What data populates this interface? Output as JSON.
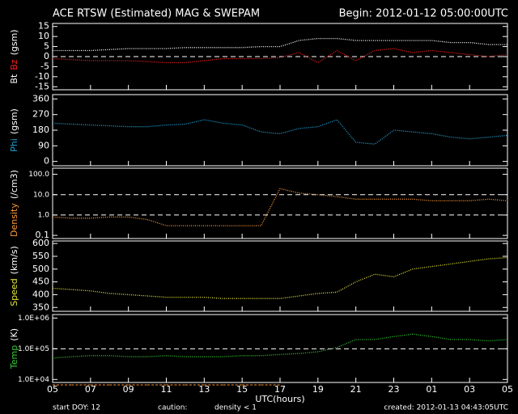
{
  "header": {
    "title": "ACE RTSW (Estimated) MAG & SWEPAM",
    "begin": "Begin: 2012-01-12 05:00:00UTC"
  },
  "footer": {
    "start": "start DOY:  12",
    "caution": "caution:",
    "density_note": "density < 1",
    "density_note_color": "#ff9933",
    "created": "created: 2012-01-13 04:43:05UTC",
    "xlabel": "UTC(hours)"
  },
  "chart_data": [
    {
      "type": "line",
      "ylabel_parts": [
        {
          "text": "Bt",
          "color": "#ffffff"
        },
        {
          "text": "Bz",
          "color": "#ff2020"
        },
        {
          "text": "(gsm)",
          "color": "#ffffff"
        }
      ],
      "x": [
        0,
        1,
        2,
        3,
        4,
        5,
        6,
        7,
        8,
        9,
        10,
        11,
        12,
        13,
        14,
        15,
        16,
        17,
        18,
        19,
        20,
        21,
        22,
        23,
        24
      ],
      "series": [
        {
          "name": "Bt",
          "color": "#ffffff",
          "values": [
            3,
            3,
            3,
            3.5,
            4,
            4,
            4,
            4.5,
            4.5,
            4.5,
            4.5,
            5,
            5,
            8,
            9,
            9,
            8,
            8,
            8,
            8,
            8,
            7,
            7,
            6,
            6
          ]
        },
        {
          "name": "Bz",
          "color": "#ff2020",
          "values": [
            -1,
            -1.5,
            -2,
            -2,
            -2,
            -2.5,
            -3,
            -3,
            -2,
            -1,
            -1,
            -1,
            -0.5,
            2,
            -3,
            3,
            -2,
            3,
            4,
            2,
            3,
            2,
            1,
            0,
            1
          ]
        }
      ],
      "ylim": [
        -16.5,
        16.5
      ],
      "yticks": [
        -15,
        -10,
        -5,
        0,
        5,
        10,
        15
      ],
      "ref_lines": [
        0
      ]
    },
    {
      "type": "line",
      "ylabel_parts": [
        {
          "text": "Phi",
          "color": "#22aadd"
        },
        {
          "text": "(gsm)",
          "color": "#ffffff"
        }
      ],
      "x": [
        0,
        1,
        2,
        3,
        4,
        5,
        6,
        7,
        8,
        9,
        10,
        11,
        12,
        13,
        14,
        15,
        16,
        17,
        18,
        19,
        20,
        21,
        22,
        23,
        24
      ],
      "series": [
        {
          "name": "Phi",
          "color": "#22aadd",
          "values": [
            220,
            215,
            210,
            205,
            200,
            200,
            210,
            215,
            240,
            220,
            210,
            170,
            160,
            190,
            200,
            240,
            110,
            100,
            180,
            170,
            160,
            140,
            130,
            140,
            150
          ]
        }
      ],
      "ylim": [
        -25,
        385
      ],
      "yticks": [
        0,
        90,
        180,
        270,
        360
      ]
    },
    {
      "type": "line",
      "log": true,
      "ylabel_parts": [
        {
          "text": "Density",
          "color": "#ff9933"
        },
        {
          "text": "(/cm3)",
          "color": "#ffffff"
        }
      ],
      "x": [
        0,
        1,
        2,
        3,
        4,
        5,
        6,
        7,
        8,
        9,
        10,
        11,
        12,
        13,
        14,
        15,
        16,
        17,
        18,
        19,
        20,
        21,
        22,
        23,
        24
      ],
      "series": [
        {
          "name": "Density",
          "color": "#ff9933",
          "values": [
            0.8,
            0.7,
            0.7,
            0.8,
            0.8,
            0.6,
            0.3,
            0.3,
            0.3,
            0.3,
            0.3,
            0.3,
            20,
            12,
            10,
            8,
            6,
            6,
            6,
            6,
            5,
            5,
            5,
            6,
            5
          ]
        }
      ],
      "ylim": [
        0.07,
        200
      ],
      "yticks": [
        0.1,
        {
          "value": 1,
          "label": "1.0"
        },
        {
          "value": 10,
          "label": "10.0"
        },
        {
          "value": 100,
          "label": "100.0"
        }
      ],
      "ref_lines": [
        1,
        10
      ]
    },
    {
      "type": "line",
      "ylabel_parts": [
        {
          "text": "Speed",
          "color": "#e6e633"
        },
        {
          "text": "(km/s)",
          "color": "#ffffff"
        }
      ],
      "x": [
        0,
        1,
        2,
        3,
        4,
        5,
        6,
        7,
        8,
        9,
        10,
        11,
        12,
        13,
        14,
        15,
        16,
        17,
        18,
        19,
        20,
        21,
        22,
        23,
        24
      ],
      "series": [
        {
          "name": "Speed",
          "color": "#e6e633",
          "values": [
            425,
            420,
            415,
            405,
            400,
            395,
            390,
            390,
            390,
            385,
            385,
            385,
            385,
            395,
            405,
            410,
            450,
            480,
            470,
            500,
            510,
            520,
            530,
            540,
            545
          ]
        }
      ],
      "ylim": [
        335,
        610
      ],
      "yticks": [
        350,
        400,
        450,
        500,
        550,
        600
      ]
    },
    {
      "type": "line",
      "log": true,
      "ylabel_parts": [
        {
          "text": "Temp",
          "color": "#33cc33"
        },
        {
          "text": "(K)",
          "color": "#ffffff"
        }
      ],
      "x": [
        0,
        1,
        2,
        3,
        4,
        5,
        6,
        7,
        8,
        9,
        10,
        11,
        12,
        13,
        14,
        15,
        16,
        17,
        18,
        19,
        20,
        21,
        22,
        23,
        24
      ],
      "series": [
        {
          "name": "Temp",
          "color": "#33cc33",
          "values": [
            50000,
            55000,
            60000,
            60000,
            55000,
            55000,
            60000,
            55000,
            55000,
            55000,
            60000,
            60000,
            65000,
            70000,
            80000,
            110000,
            200000,
            200000,
            250000,
            300000,
            250000,
            200000,
            200000,
            180000,
            200000
          ]
        }
      ],
      "ylim": [
        8000,
        1300000
      ],
      "yticks": [
        {
          "value": 10000,
          "label": "1.0E+04"
        },
        {
          "value": 100000,
          "label": "1.0E+05"
        },
        {
          "value": 1000000,
          "label": "1.0E+06"
        }
      ],
      "ref_lines": [
        100000
      ],
      "xlim": [
        0,
        24
      ],
      "xticks": [
        {
          "value": 0,
          "label": "05"
        },
        {
          "value": 2,
          "label": "07"
        },
        {
          "value": 4,
          "label": "09"
        },
        {
          "value": 6,
          "label": "11"
        },
        {
          "value": 8,
          "label": "13"
        },
        {
          "value": 10,
          "label": "15"
        },
        {
          "value": 12,
          "label": "17"
        },
        {
          "value": 14,
          "label": "19"
        },
        {
          "value": 16,
          "label": "21"
        },
        {
          "value": 18,
          "label": "23"
        },
        {
          "value": 20,
          "label": "01"
        },
        {
          "value": 22,
          "label": "03"
        },
        {
          "value": 24,
          "label": "05"
        }
      ]
    }
  ]
}
